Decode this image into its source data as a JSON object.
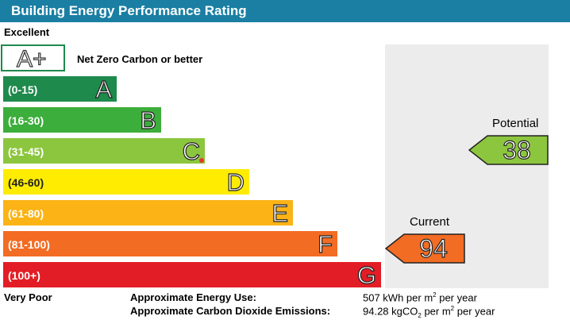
{
  "header": {
    "title": "Building Energy Performance Rating"
  },
  "scale": {
    "top_label": "Excellent",
    "bottom_label": "Very Poor"
  },
  "net_zero": {
    "letter": "A+",
    "description": "Net Zero Carbon or better",
    "border_color": "#1e8a4c"
  },
  "bands": [
    {
      "range": "(0-15)",
      "letter": "A",
      "color": "#1e8a4c"
    },
    {
      "range": "(16-30)",
      "letter": "B",
      "color": "#3cae3b"
    },
    {
      "range": "(31-45)",
      "letter": "C",
      "color": "#8cc63f"
    },
    {
      "range": "(46-60)",
      "letter": "D",
      "color": "#ffec00"
    },
    {
      "range": "(61-80)",
      "letter": "E",
      "color": "#fbb315"
    },
    {
      "range": "(81-100)",
      "letter": "F",
      "color": "#f26c23"
    },
    {
      "range": "(100+)",
      "letter": "G",
      "color": "#e31d25"
    }
  ],
  "potential": {
    "label": "Potential",
    "value": "38",
    "color": "#8cc63f"
  },
  "current": {
    "label": "Current",
    "value": "94",
    "color": "#f26c23"
  },
  "energy_use": {
    "label": "Approximate Energy Use:",
    "value_prefix": "507 kWh per m",
    "value_sup": "2",
    "value_suffix": " per year"
  },
  "co2": {
    "label": "Approximate Carbon Dioxide Emissions:",
    "value_prefix": "94.28 kgCO",
    "value_sub": "2",
    "value_mid": " per m",
    "value_sup": "2",
    "value_suffix": " per year"
  }
}
